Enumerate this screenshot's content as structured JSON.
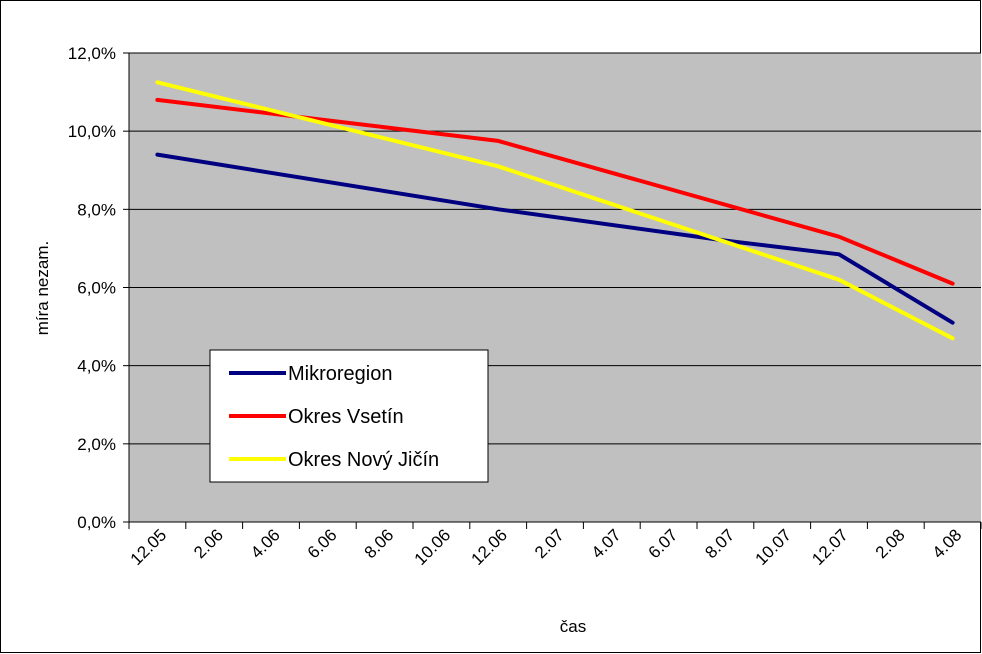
{
  "chart_data": {
    "type": "line",
    "title": "",
    "xlabel": "čas",
    "ylabel": "míra nezam.",
    "categories": [
      "12.05",
      "2.06",
      "4.06",
      "6.06",
      "8.06",
      "10.06",
      "12.06",
      "2.07",
      "4.07",
      "6.07",
      "8.07",
      "10.07",
      "12.07",
      "2.08",
      "4.08"
    ],
    "ylim": [
      0,
      12
    ],
    "yticks": [
      0,
      2,
      4,
      6,
      8,
      10,
      12
    ],
    "ytick_labels": [
      "0,0%",
      "2,0%",
      "4,0%",
      "6,0%",
      "8,0%",
      "10,0%",
      "12,0%"
    ],
    "grid": true,
    "plot_background": "#c0c0c0",
    "legend_position": "bottom-left",
    "series": [
      {
        "name": "Mikroregion",
        "color": "#000080",
        "points": [
          {
            "category": "12.05",
            "value": 9.4
          },
          {
            "category": "12.06",
            "value": 8.0
          },
          {
            "category": "8.07",
            "value": 7.2
          },
          {
            "category": "12.07",
            "value": 6.85
          },
          {
            "category": "4.08",
            "value": 5.1
          }
        ]
      },
      {
        "name": "Okres Vsetín",
        "color": "#ff0000",
        "points": [
          {
            "category": "12.05",
            "value": 10.8
          },
          {
            "category": "12.06",
            "value": 9.75
          },
          {
            "category": "12.07",
            "value": 7.3
          },
          {
            "category": "4.08",
            "value": 6.1
          }
        ]
      },
      {
        "name": "Okres Nový Jičín",
        "color": "#ffff00",
        "points": [
          {
            "category": "12.05",
            "value": 11.25
          },
          {
            "category": "12.06",
            "value": 9.1
          },
          {
            "category": "12.07",
            "value": 6.2
          },
          {
            "category": "4.08",
            "value": 4.7
          }
        ]
      }
    ]
  }
}
